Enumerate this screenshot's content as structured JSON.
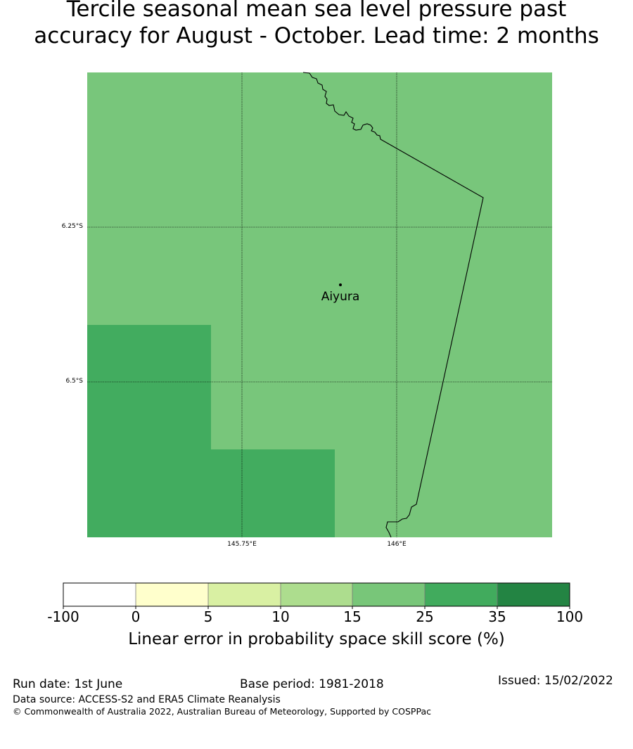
{
  "title": {
    "line1": "Tercile seasonal mean sea level pressure past",
    "line2": "accuracy for August - October. Lead time: 2 months"
  },
  "map": {
    "lat_labels": [
      "6.25°S",
      "6.5°S"
    ],
    "lon_labels": [
      "145.75°E",
      "146°E"
    ],
    "place": "Aiyura",
    "colors": {
      "main_cell": "#78c67b",
      "skill_cell": "#42ac5f",
      "border_line": "#000000",
      "grid_line": "#000000"
    }
  },
  "colorbar": {
    "ticks": [
      "-100",
      "0",
      "5",
      "10",
      "15",
      "25",
      "35",
      "100"
    ],
    "colors": [
      "#ffffff",
      "#ffffcc",
      "#d9f0a3",
      "#addd8e",
      "#78c679",
      "#41ab5d",
      "#238443"
    ],
    "label": "Linear error in probability space skill score (%)"
  },
  "footer": {
    "run_date": "Run date: 1st June",
    "base_period": "Base period: 1981-2018",
    "issued": "Issued: 15/02/2022",
    "data_source": "Data source: ACCESS-S2 and ERA5 Climate Reanalysis",
    "copyright": "© Commonwealth of Australia 2022, Australian Bureau of Meteorology, Supported by COSPPac"
  }
}
